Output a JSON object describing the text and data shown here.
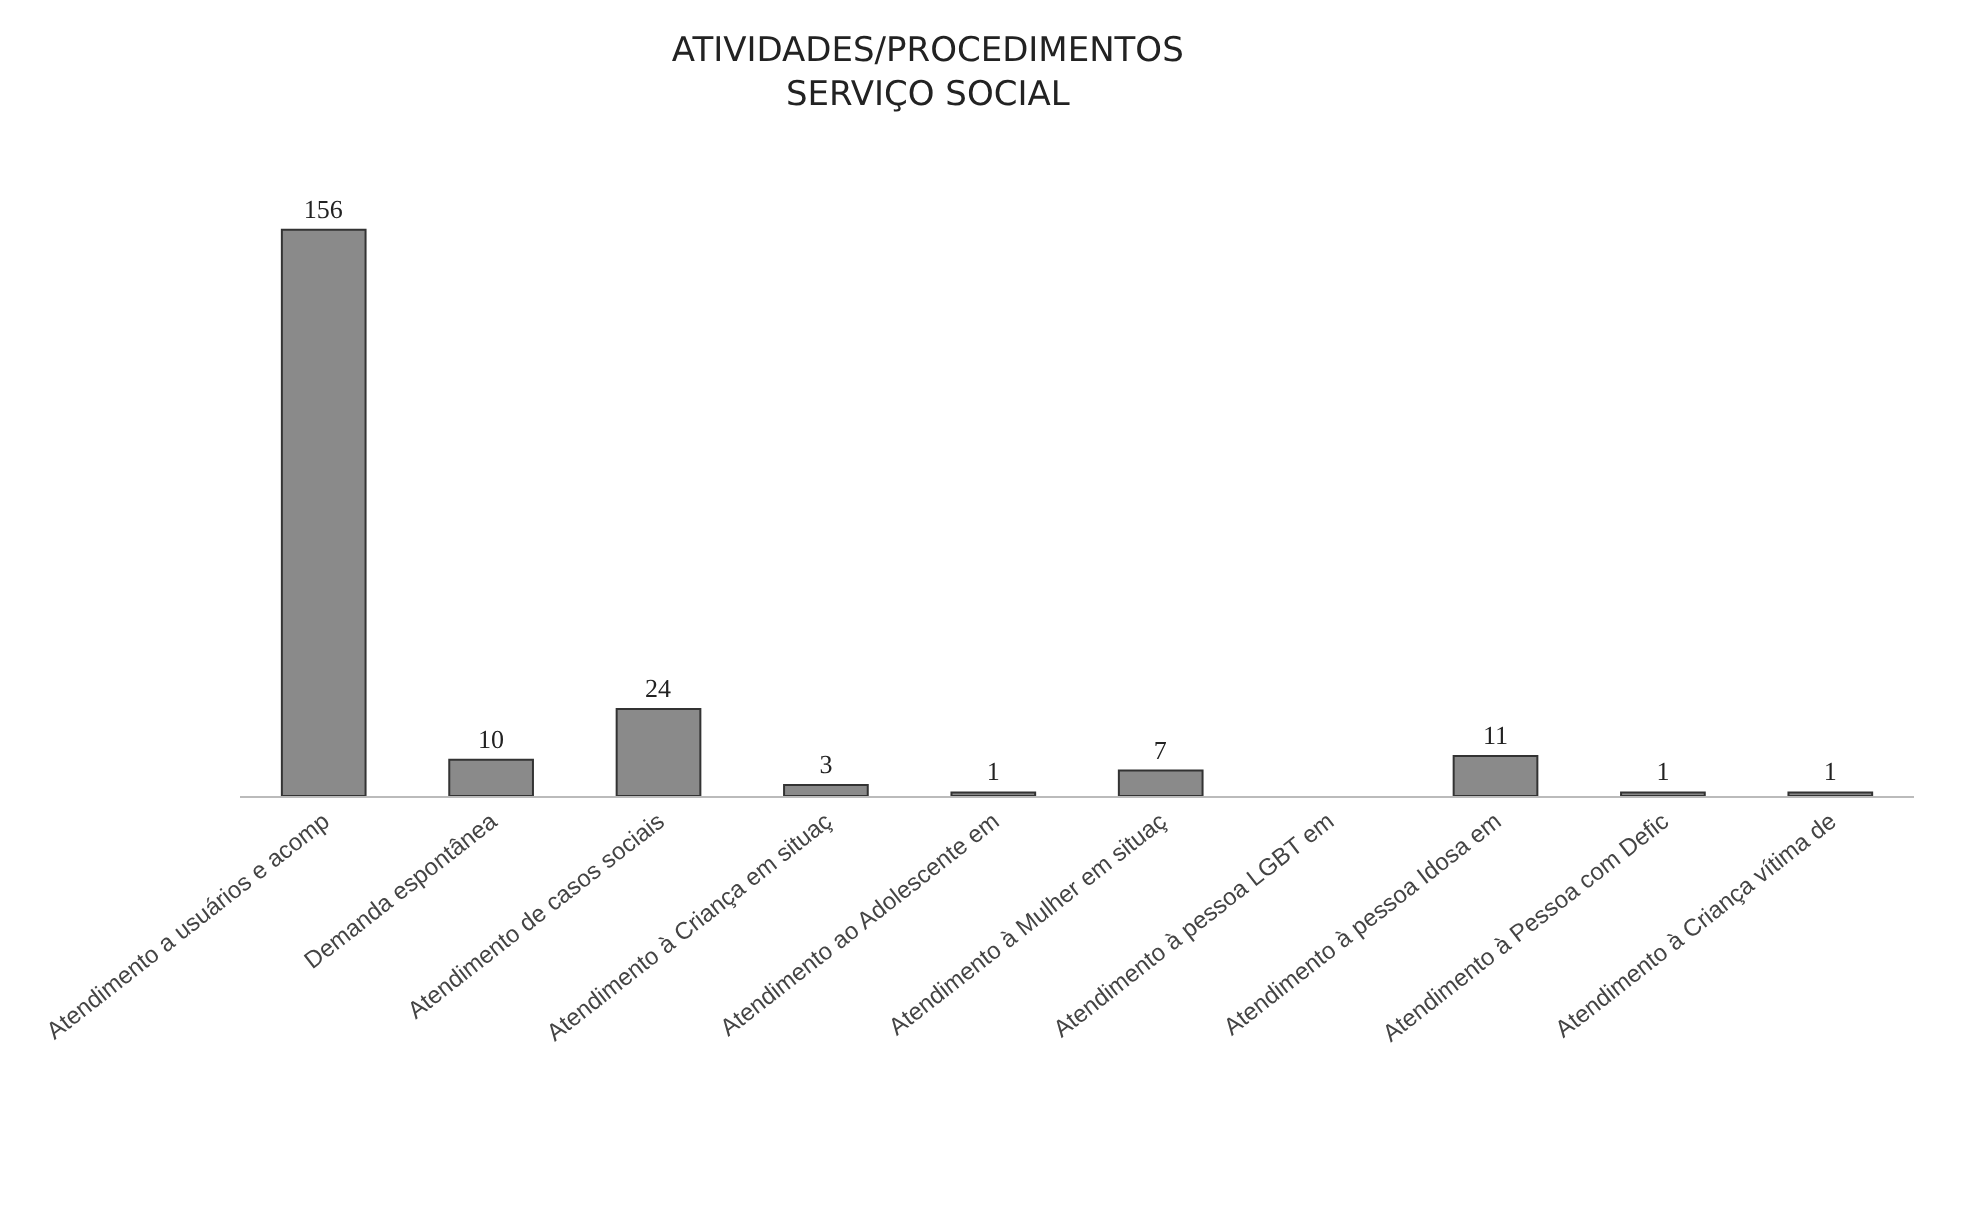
{
  "chart_data": {
    "type": "bar",
    "title": "ATIVIDADES/PROCEDIMENTOS\nSERVIÇO SOCIAL",
    "categories": [
      "Atendimento a usuários e acomp",
      "Demanda espontânea",
      "Atendimento de casos sociais",
      "Atendimento à Criança em situaç",
      "Atendimento ao Adolescente em",
      "Atendimento à Mulher em situaç",
      "Atendimento à pessoa LGBT em",
      "Atendimento à pessoa Idosa em",
      "Atendimento à Pessoa com Defic",
      "Atendimento à Criança vítima de"
    ],
    "values": [
      156,
      10,
      24,
      3,
      1,
      7,
      null,
      11,
      1,
      1
    ],
    "color": "#8a8a8a",
    "data_labels": true,
    "grid": false,
    "legend": false
  }
}
